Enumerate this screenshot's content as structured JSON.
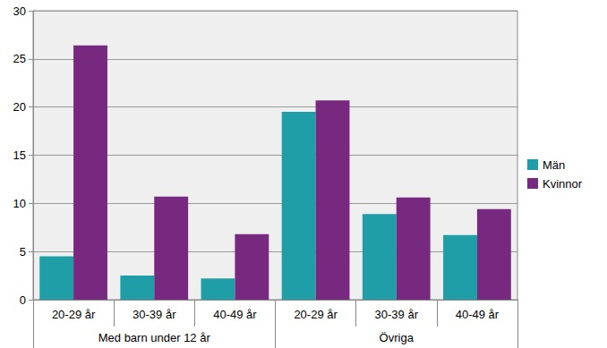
{
  "chart_data": {
    "type": "bar",
    "categories": [
      "20-29 år",
      "30-39 år",
      "40-49 år",
      "20-29 år",
      "30-39 år",
      "40-49 år"
    ],
    "groups": [
      "Med barn under 12 år",
      "Med barn under 12 år",
      "Med barn under 12 år",
      "Övriga",
      "Övriga",
      "Övriga"
    ],
    "series": [
      {
        "name": "Män",
        "color": "#1f9ea8",
        "values": [
          4.5,
          2.5,
          2.2,
          19.5,
          8.9,
          6.7
        ]
      },
      {
        "name": "Kvinnor",
        "color": "#76297e",
        "values": [
          26.4,
          10.7,
          6.8,
          20.7,
          10.6,
          9.4
        ]
      }
    ],
    "ylim": [
      0,
      30
    ],
    "yticks": [
      0,
      5,
      10,
      15,
      20,
      25,
      30
    ],
    "grid": true,
    "legend": "right"
  }
}
